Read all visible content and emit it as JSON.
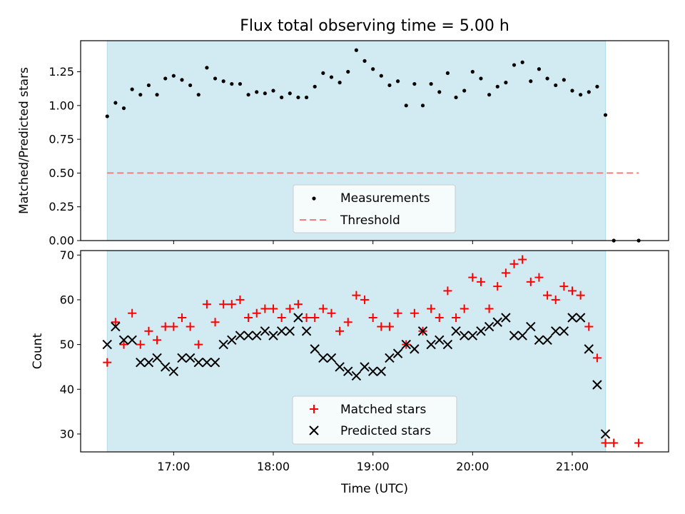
{
  "chart_data": [
    {
      "type": "scatter",
      "title": "Flux total observing time = 5.00 h",
      "xlabel": "",
      "ylabel": "Matched/Predicted stars",
      "ylim": [
        0,
        1.48
      ],
      "yticks": [
        "0.00",
        "0.25",
        "0.50",
        "0.75",
        "1.00",
        "1.25"
      ],
      "grid": false,
      "legend_placement": "lower-center",
      "observing_window": {
        "start": "16:20",
        "end": "21:20",
        "color": "#add8e6"
      },
      "threshold": {
        "name": "Threshold",
        "value": 0.5,
        "x_start": "16:20",
        "x_end": "21:40",
        "color": "#f08080"
      },
      "series": [
        {
          "name": "Measurements",
          "color": "#000000",
          "x": [
            "16:20",
            "16:25",
            "16:30",
            "16:35",
            "16:40",
            "16:45",
            "16:50",
            "16:55",
            "17:00",
            "17:05",
            "17:10",
            "17:15",
            "17:20",
            "17:25",
            "17:30",
            "17:35",
            "17:40",
            "17:45",
            "17:50",
            "17:55",
            "18:00",
            "18:05",
            "18:10",
            "18:15",
            "18:20",
            "18:25",
            "18:30",
            "18:35",
            "18:40",
            "18:45",
            "18:50",
            "18:55",
            "19:00",
            "19:05",
            "19:10",
            "19:15",
            "19:20",
            "19:25",
            "19:30",
            "19:35",
            "19:40",
            "19:45",
            "19:50",
            "19:55",
            "20:00",
            "20:05",
            "20:10",
            "20:15",
            "20:20",
            "20:25",
            "20:30",
            "20:35",
            "20:40",
            "20:45",
            "20:50",
            "20:55",
            "21:00",
            "21:05",
            "21:10",
            "21:15",
            "21:20",
            "21:25",
            "21:40"
          ],
          "values": [
            0.92,
            1.02,
            0.98,
            1.12,
            1.08,
            1.15,
            1.08,
            1.2,
            1.22,
            1.19,
            1.15,
            1.08,
            1.28,
            1.2,
            1.18,
            1.16,
            1.16,
            1.08,
            1.1,
            1.09,
            1.11,
            1.06,
            1.09,
            1.06,
            1.06,
            1.14,
            1.24,
            1.21,
            1.17,
            1.25,
            1.41,
            1.33,
            1.27,
            1.22,
            1.15,
            1.18,
            1.0,
            1.16,
            1.0,
            1.16,
            1.1,
            1.24,
            1.06,
            1.11,
            1.25,
            1.2,
            1.08,
            1.14,
            1.17,
            1.3,
            1.32,
            1.18,
            1.27,
            1.2,
            1.15,
            1.19,
            1.11,
            1.08,
            1.1,
            1.14,
            0.93,
            0.0,
            0.0
          ]
        }
      ]
    },
    {
      "type": "scatter",
      "title": "",
      "xlabel": "Time (UTC)",
      "ylabel": "Count",
      "ylim": [
        26,
        71
      ],
      "yticks": [
        "30",
        "40",
        "50",
        "60",
        "70"
      ],
      "xlim": [
        "16:04",
        "21:58"
      ],
      "xticks": [
        "17:00",
        "18:00",
        "19:00",
        "20:00",
        "21:00"
      ],
      "grid": false,
      "legend_placement": "lower-center",
      "observing_window": {
        "start": "16:20",
        "end": "21:20",
        "color": "#add8e6"
      },
      "series": [
        {
          "name": "Matched stars",
          "color": "#ff0000",
          "marker": "+",
          "x": [
            "16:20",
            "16:25",
            "16:30",
            "16:35",
            "16:40",
            "16:45",
            "16:50",
            "16:55",
            "17:00",
            "17:05",
            "17:10",
            "17:15",
            "17:20",
            "17:25",
            "17:30",
            "17:35",
            "17:40",
            "17:45",
            "17:50",
            "17:55",
            "18:00",
            "18:05",
            "18:10",
            "18:15",
            "18:20",
            "18:25",
            "18:30",
            "18:35",
            "18:40",
            "18:45",
            "18:50",
            "18:55",
            "19:00",
            "19:05",
            "19:10",
            "19:15",
            "19:20",
            "19:25",
            "19:30",
            "19:35",
            "19:40",
            "19:45",
            "19:50",
            "19:55",
            "20:00",
            "20:05",
            "20:10",
            "20:15",
            "20:20",
            "20:25",
            "20:30",
            "20:35",
            "20:40",
            "20:45",
            "20:50",
            "20:55",
            "21:00",
            "21:05",
            "21:10",
            "21:15",
            "21:20",
            "21:25",
            "21:40"
          ],
          "values": [
            46,
            55,
            50,
            57,
            50,
            53,
            51,
            54,
            54,
            56,
            54,
            50,
            59,
            55,
            59,
            59,
            60,
            56,
            57,
            58,
            58,
            56,
            58,
            59,
            56,
            56,
            58,
            57,
            53,
            55,
            61,
            60,
            56,
            54,
            54,
            57,
            50,
            57,
            53,
            58,
            56,
            62,
            56,
            58,
            65,
            64,
            58,
            63,
            66,
            68,
            69,
            64,
            65,
            61,
            60,
            63,
            62,
            61,
            54,
            47,
            28,
            28,
            28
          ]
        },
        {
          "name": "Predicted stars",
          "color": "#000000",
          "marker": "x",
          "x": [
            "16:20",
            "16:25",
            "16:30",
            "16:35",
            "16:40",
            "16:45",
            "16:50",
            "16:55",
            "17:00",
            "17:05",
            "17:10",
            "17:15",
            "17:20",
            "17:25",
            "17:30",
            "17:35",
            "17:40",
            "17:45",
            "17:50",
            "17:55",
            "18:00",
            "18:05",
            "18:10",
            "18:15",
            "18:20",
            "18:25",
            "18:30",
            "18:35",
            "18:40",
            "18:45",
            "18:50",
            "18:55",
            "19:00",
            "19:05",
            "19:10",
            "19:15",
            "19:20",
            "19:25",
            "19:30",
            "19:35",
            "19:40",
            "19:45",
            "19:50",
            "19:55",
            "20:00",
            "20:05",
            "20:10",
            "20:15",
            "20:20",
            "20:25",
            "20:30",
            "20:35",
            "20:40",
            "20:45",
            "20:50",
            "20:55",
            "21:00",
            "21:05",
            "21:10",
            "21:15",
            "21:20"
          ],
          "values": [
            50,
            54,
            51,
            51,
            46,
            46,
            47,
            45,
            44,
            47,
            47,
            46,
            46,
            46,
            50,
            51,
            52,
            52,
            52,
            53,
            52,
            53,
            53,
            56,
            53,
            49,
            47,
            47,
            45,
            44,
            43,
            45,
            44,
            44,
            47,
            48,
            50,
            49,
            53,
            50,
            51,
            50,
            53,
            52,
            52,
            53,
            54,
            55,
            56,
            52,
            52,
            54,
            51,
            51,
            53,
            53,
            56,
            56,
            49,
            41,
            30
          ]
        }
      ]
    }
  ]
}
